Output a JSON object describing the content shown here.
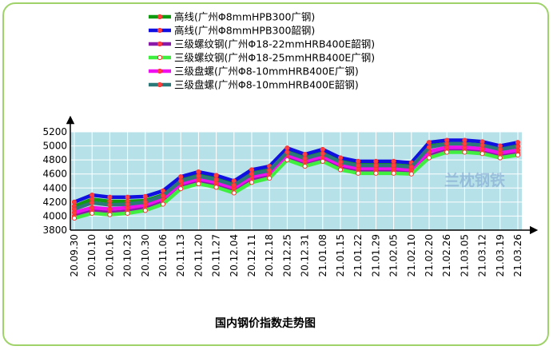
{
  "chart_data": {
    "type": "line",
    "title": "国内钢价指数走势图",
    "watermark": "兰枕钢铁",
    "ylim": [
      3800,
      5200
    ],
    "yticks": [
      3800,
      4000,
      4200,
      4400,
      4600,
      4800,
      5000,
      5200
    ],
    "plot_bg": "#b7e1e8",
    "grid": true,
    "legend_position": "top-center",
    "categories": [
      "20.09.30",
      "20.10.10",
      "20.10.16",
      "20.10.23",
      "20.10.30",
      "20.11.06",
      "20.11.13",
      "20.11.20",
      "20.11.27",
      "20.12.04",
      "20.12.11",
      "20.12.18",
      "20.12.25",
      "20.12.31",
      "21.01.08",
      "21.01.15",
      "21.01.22",
      "21.01.29",
      "21.02.05",
      "21.02.10",
      "21.02.20",
      "21.02.26",
      "21.03.05",
      "21.03.12",
      "21.03.19",
      "21.03.26"
    ],
    "series": [
      {
        "name": "高线(广州Φ8mmHPB300广钢)",
        "color": "#109a10",
        "marker_fill": "#ff4040",
        "values": [
          4140,
          4240,
          4210,
          4210,
          4220,
          4300,
          4510,
          4580,
          4530,
          4450,
          4610,
          4660,
          4920,
          4830,
          4900,
          4780,
          4730,
          4730,
          4730,
          4710,
          5000,
          5030,
          5030,
          5010,
          4950,
          5000
        ]
      },
      {
        "name": "高线(广州Φ8mmHPB300韶钢)",
        "color": "#1010e0",
        "marker_fill": "#ff4040",
        "values": [
          4200,
          4300,
          4270,
          4270,
          4280,
          4360,
          4560,
          4630,
          4580,
          4500,
          4660,
          4710,
          4970,
          4880,
          4950,
          4830,
          4780,
          4780,
          4780,
          4760,
          5050,
          5080,
          5080,
          5060,
          5000,
          5050
        ]
      },
      {
        "name": "三级螺纹钢(广州Φ18-22mmHRB400E韶钢)",
        "color": "#8a1aa8",
        "marker_fill": "#ff4040",
        "values": [
          4000,
          4080,
          4050,
          4070,
          4110,
          4200,
          4420,
          4490,
          4440,
          4360,
          4520,
          4570,
          4830,
          4740,
          4810,
          4690,
          4640,
          4640,
          4640,
          4620,
          4860,
          4940,
          4940,
          4920,
          4860,
          4900
        ]
      },
      {
        "name": "三级螺纹钢(广州Φ18-25mmHRB400E广钢)",
        "color": "#40ee40",
        "marker_fill": "#ffffff",
        "values": [
          3970,
          4040,
          4020,
          4040,
          4080,
          4170,
          4390,
          4460,
          4410,
          4330,
          4480,
          4540,
          4800,
          4710,
          4780,
          4660,
          4610,
          4610,
          4610,
          4600,
          4830,
          4910,
          4910,
          4890,
          4830,
          4870
        ]
      },
      {
        "name": "三级盘螺(广州Φ8-10mmHRB400E广钢)",
        "color": "#ee10ee",
        "marker_fill": "#ff4040",
        "values": [
          4050,
          4120,
          4100,
          4120,
          4160,
          4250,
          4460,
          4530,
          4480,
          4400,
          4560,
          4610,
          4870,
          4780,
          4850,
          4730,
          4680,
          4680,
          4680,
          4660,
          4920,
          4980,
          4980,
          4960,
          4900,
          4940
        ]
      },
      {
        "name": "三级盘螺(广州Φ8-10mmHRB400E韶钢)",
        "color": "#2a7878",
        "marker_fill": "#ff4040",
        "values": [
          4100,
          4190,
          4160,
          4170,
          4200,
          4290,
          4500,
          4570,
          4520,
          4440,
          4600,
          4650,
          4910,
          4820,
          4890,
          4770,
          4720,
          4720,
          4720,
          4700,
          4980,
          5030,
          5030,
          5010,
          4950,
          4990
        ]
      }
    ]
  }
}
